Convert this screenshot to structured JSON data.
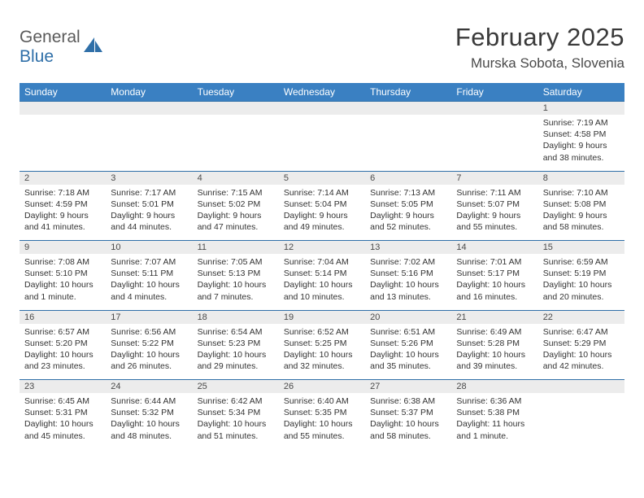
{
  "brand": {
    "word1": "General",
    "word2": "Blue"
  },
  "title": "February 2025",
  "location": "Murska Sobota, Slovenia",
  "colors": {
    "header_bg": "#3a80c2",
    "header_text": "#ffffff",
    "daynum_bg": "#ececec",
    "rule": "#2f6fa8",
    "logo_gray": "#5a5a5a",
    "logo_blue": "#2f6fa8"
  },
  "weekdays": [
    "Sunday",
    "Monday",
    "Tuesday",
    "Wednesday",
    "Thursday",
    "Friday",
    "Saturday"
  ],
  "weeks": [
    {
      "nums": [
        "",
        "",
        "",
        "",
        "",
        "",
        "1"
      ],
      "cells": [
        null,
        null,
        null,
        null,
        null,
        null,
        {
          "sunrise": "Sunrise: 7:19 AM",
          "sunset": "Sunset: 4:58 PM",
          "daylight": "Daylight: 9 hours and 38 minutes."
        }
      ]
    },
    {
      "nums": [
        "2",
        "3",
        "4",
        "5",
        "6",
        "7",
        "8"
      ],
      "cells": [
        {
          "sunrise": "Sunrise: 7:18 AM",
          "sunset": "Sunset: 4:59 PM",
          "daylight": "Daylight: 9 hours and 41 minutes."
        },
        {
          "sunrise": "Sunrise: 7:17 AM",
          "sunset": "Sunset: 5:01 PM",
          "daylight": "Daylight: 9 hours and 44 minutes."
        },
        {
          "sunrise": "Sunrise: 7:15 AM",
          "sunset": "Sunset: 5:02 PM",
          "daylight": "Daylight: 9 hours and 47 minutes."
        },
        {
          "sunrise": "Sunrise: 7:14 AM",
          "sunset": "Sunset: 5:04 PM",
          "daylight": "Daylight: 9 hours and 49 minutes."
        },
        {
          "sunrise": "Sunrise: 7:13 AM",
          "sunset": "Sunset: 5:05 PM",
          "daylight": "Daylight: 9 hours and 52 minutes."
        },
        {
          "sunrise": "Sunrise: 7:11 AM",
          "sunset": "Sunset: 5:07 PM",
          "daylight": "Daylight: 9 hours and 55 minutes."
        },
        {
          "sunrise": "Sunrise: 7:10 AM",
          "sunset": "Sunset: 5:08 PM",
          "daylight": "Daylight: 9 hours and 58 minutes."
        }
      ]
    },
    {
      "nums": [
        "9",
        "10",
        "11",
        "12",
        "13",
        "14",
        "15"
      ],
      "cells": [
        {
          "sunrise": "Sunrise: 7:08 AM",
          "sunset": "Sunset: 5:10 PM",
          "daylight": "Daylight: 10 hours and 1 minute."
        },
        {
          "sunrise": "Sunrise: 7:07 AM",
          "sunset": "Sunset: 5:11 PM",
          "daylight": "Daylight: 10 hours and 4 minutes."
        },
        {
          "sunrise": "Sunrise: 7:05 AM",
          "sunset": "Sunset: 5:13 PM",
          "daylight": "Daylight: 10 hours and 7 minutes."
        },
        {
          "sunrise": "Sunrise: 7:04 AM",
          "sunset": "Sunset: 5:14 PM",
          "daylight": "Daylight: 10 hours and 10 minutes."
        },
        {
          "sunrise": "Sunrise: 7:02 AM",
          "sunset": "Sunset: 5:16 PM",
          "daylight": "Daylight: 10 hours and 13 minutes."
        },
        {
          "sunrise": "Sunrise: 7:01 AM",
          "sunset": "Sunset: 5:17 PM",
          "daylight": "Daylight: 10 hours and 16 minutes."
        },
        {
          "sunrise": "Sunrise: 6:59 AM",
          "sunset": "Sunset: 5:19 PM",
          "daylight": "Daylight: 10 hours and 20 minutes."
        }
      ]
    },
    {
      "nums": [
        "16",
        "17",
        "18",
        "19",
        "20",
        "21",
        "22"
      ],
      "cells": [
        {
          "sunrise": "Sunrise: 6:57 AM",
          "sunset": "Sunset: 5:20 PM",
          "daylight": "Daylight: 10 hours and 23 minutes."
        },
        {
          "sunrise": "Sunrise: 6:56 AM",
          "sunset": "Sunset: 5:22 PM",
          "daylight": "Daylight: 10 hours and 26 minutes."
        },
        {
          "sunrise": "Sunrise: 6:54 AM",
          "sunset": "Sunset: 5:23 PM",
          "daylight": "Daylight: 10 hours and 29 minutes."
        },
        {
          "sunrise": "Sunrise: 6:52 AM",
          "sunset": "Sunset: 5:25 PM",
          "daylight": "Daylight: 10 hours and 32 minutes."
        },
        {
          "sunrise": "Sunrise: 6:51 AM",
          "sunset": "Sunset: 5:26 PM",
          "daylight": "Daylight: 10 hours and 35 minutes."
        },
        {
          "sunrise": "Sunrise: 6:49 AM",
          "sunset": "Sunset: 5:28 PM",
          "daylight": "Daylight: 10 hours and 39 minutes."
        },
        {
          "sunrise": "Sunrise: 6:47 AM",
          "sunset": "Sunset: 5:29 PM",
          "daylight": "Daylight: 10 hours and 42 minutes."
        }
      ]
    },
    {
      "nums": [
        "23",
        "24",
        "25",
        "26",
        "27",
        "28",
        ""
      ],
      "cells": [
        {
          "sunrise": "Sunrise: 6:45 AM",
          "sunset": "Sunset: 5:31 PM",
          "daylight": "Daylight: 10 hours and 45 minutes."
        },
        {
          "sunrise": "Sunrise: 6:44 AM",
          "sunset": "Sunset: 5:32 PM",
          "daylight": "Daylight: 10 hours and 48 minutes."
        },
        {
          "sunrise": "Sunrise: 6:42 AM",
          "sunset": "Sunset: 5:34 PM",
          "daylight": "Daylight: 10 hours and 51 minutes."
        },
        {
          "sunrise": "Sunrise: 6:40 AM",
          "sunset": "Sunset: 5:35 PM",
          "daylight": "Daylight: 10 hours and 55 minutes."
        },
        {
          "sunrise": "Sunrise: 6:38 AM",
          "sunset": "Sunset: 5:37 PM",
          "daylight": "Daylight: 10 hours and 58 minutes."
        },
        {
          "sunrise": "Sunrise: 6:36 AM",
          "sunset": "Sunset: 5:38 PM",
          "daylight": "Daylight: 11 hours and 1 minute."
        },
        null
      ]
    }
  ]
}
